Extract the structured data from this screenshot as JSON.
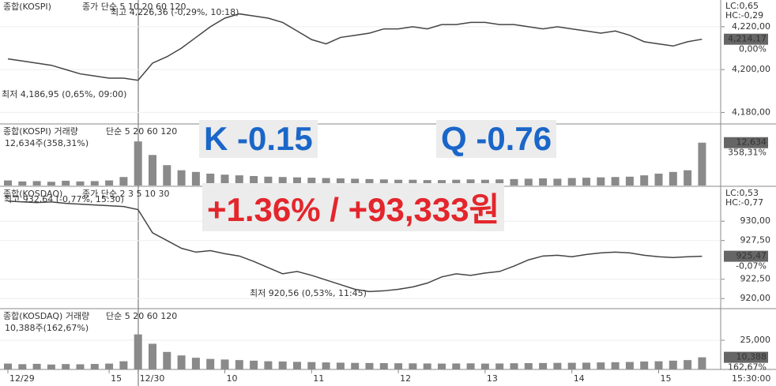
{
  "chart_data": [
    {
      "type": "line",
      "title": "종합(KOSPI)",
      "subtitle": "종가 단순 5 10 20 60 120",
      "color": "#444444",
      "high_label": "최고 4,226,36 (-0,29%, 10:18)",
      "low_label": "최저 4,186,95 (0,65%, 09:00)",
      "lc": "LC:0,65",
      "hc": "HC:-0,29",
      "last_label": "4,214,17",
      "change_label": "0,00%",
      "values": [
        4205,
        4204,
        4203,
        4202,
        4200,
        4198,
        4197,
        4196,
        4196,
        4195,
        4203,
        4206,
        4210,
        4215,
        4220,
        4224,
        4226,
        4225,
        4224,
        4222,
        4218,
        4214,
        4212,
        4215,
        4216,
        4217,
        4219,
        4219,
        4220,
        4219,
        4221,
        4221,
        4222,
        4222,
        4221,
        4221,
        4220,
        4219,
        4220,
        4219,
        4218,
        4217,
        4218,
        4216,
        4213,
        4212,
        4211,
        4213,
        4214.17
      ],
      "ylim": [
        4175,
        4231
      ],
      "yticks": [
        {
          "value": 4220,
          "label": "4,220,00"
        },
        {
          "value": 4200,
          "label": "4,200,00"
        },
        {
          "value": 4180,
          "label": "4,180,00"
        }
      ]
    },
    {
      "type": "bar",
      "title": "종합(KOSPI) 거래량",
      "subtitle": "단순 5 20 60 120",
      "color": "#8a8a8a",
      "value_text": "12,634주(358,31%)",
      "last_label": "12,634",
      "change_label": "358,31%",
      "values": [
        1500,
        1200,
        1300,
        1100,
        1400,
        1200,
        1300,
        1500,
        2500,
        13000,
        9000,
        6000,
        4500,
        4000,
        3500,
        3200,
        3000,
        2800,
        2600,
        2500,
        2400,
        2300,
        2200,
        2100,
        2000,
        1900,
        1800,
        1700,
        1700,
        1600,
        1600,
        1700,
        1800,
        1700,
        1800,
        1900,
        2000,
        2100,
        2000,
        2200,
        2300,
        2400,
        2500,
        2600,
        3000,
        3500,
        4000,
        4500,
        12634
      ],
      "ylim": [
        0,
        17000
      ]
    },
    {
      "type": "line",
      "title": "종합(KOSDAQ)",
      "subtitle": "종가 단순 2 3 5 10 30",
      "color": "#444444",
      "high_label": "최고 932,64 (-0,77%, 15:30)",
      "low_label": "최저 920,56 (0,53%, 11:45)",
      "lc": "LC:0,53",
      "hc": "HC:-0,77",
      "last_label": "925,47",
      "change_label": "-0,07%",
      "values": [
        932.6,
        932.5,
        932.4,
        932.5,
        932.3,
        932.2,
        932.1,
        932.0,
        931.9,
        931.5,
        928.5,
        927.5,
        926.5,
        926.0,
        926.2,
        925.8,
        925.5,
        924.8,
        924.0,
        923.2,
        923.5,
        923.0,
        922.4,
        921.8,
        921.2,
        920.9,
        921.0,
        921.2,
        921.5,
        922.0,
        922.8,
        923.2,
        923.0,
        923.3,
        923.5,
        924.2,
        925.0,
        925.5,
        925.6,
        925.4,
        925.7,
        925.9,
        926.0,
        925.9,
        925.6,
        925.4,
        925.3,
        925.4,
        925.47
      ],
      "ylim": [
        918.8,
        934
      ],
      "yticks": [
        {
          "value": 930,
          "label": "930,00"
        },
        {
          "value": 927.5,
          "label": "927,50"
        },
        {
          "value": 922.5,
          "label": "922,50"
        },
        {
          "value": 920,
          "label": "920,00"
        }
      ]
    },
    {
      "type": "bar",
      "title": "종합(KOSDAQ) 거래량",
      "subtitle": "단순 5 20 60 120",
      "color": "#8a8a8a",
      "value_text": "10,388주(162,67%)",
      "last_label": "10,388",
      "change_label": "162,67%",
      "values": [
        5000,
        4500,
        4800,
        4200,
        4600,
        4400,
        4700,
        5000,
        7000,
        30000,
        22000,
        15000,
        12000,
        10000,
        9000,
        8500,
        8000,
        7500,
        7000,
        6800,
        6500,
        6300,
        6000,
        5800,
        5600,
        5500,
        5400,
        5300,
        5200,
        5100,
        5000,
        5100,
        5200,
        5000,
        5100,
        5300,
        5400,
        5500,
        5600,
        5700,
        5800,
        6000,
        6200,
        6400,
        6800,
        7000,
        7500,
        8000,
        10388
      ],
      "ylim": [
        0,
        48700
      ],
      "yticks": [
        {
          "value": 25000,
          "label": "25,000"
        }
      ],
      "categories": [
        "12/29",
        null,
        null,
        null,
        null,
        null,
        null,
        "15",
        null,
        "12/30",
        null,
        null,
        null,
        null,
        null,
        "10",
        null,
        null,
        null,
        null,
        null,
        "11",
        null,
        null,
        null,
        null,
        null,
        "12",
        null,
        null,
        null,
        null,
        null,
        "13",
        null,
        null,
        null,
        null,
        null,
        "14",
        null,
        null,
        null,
        null,
        null,
        "15",
        null,
        null,
        null
      ],
      "time_label": "15:30:00"
    }
  ],
  "overlay": {
    "kospi": "K -0.15",
    "kosdaq": "Q -0.76",
    "summary": "+1.36% / +93,333원"
  }
}
